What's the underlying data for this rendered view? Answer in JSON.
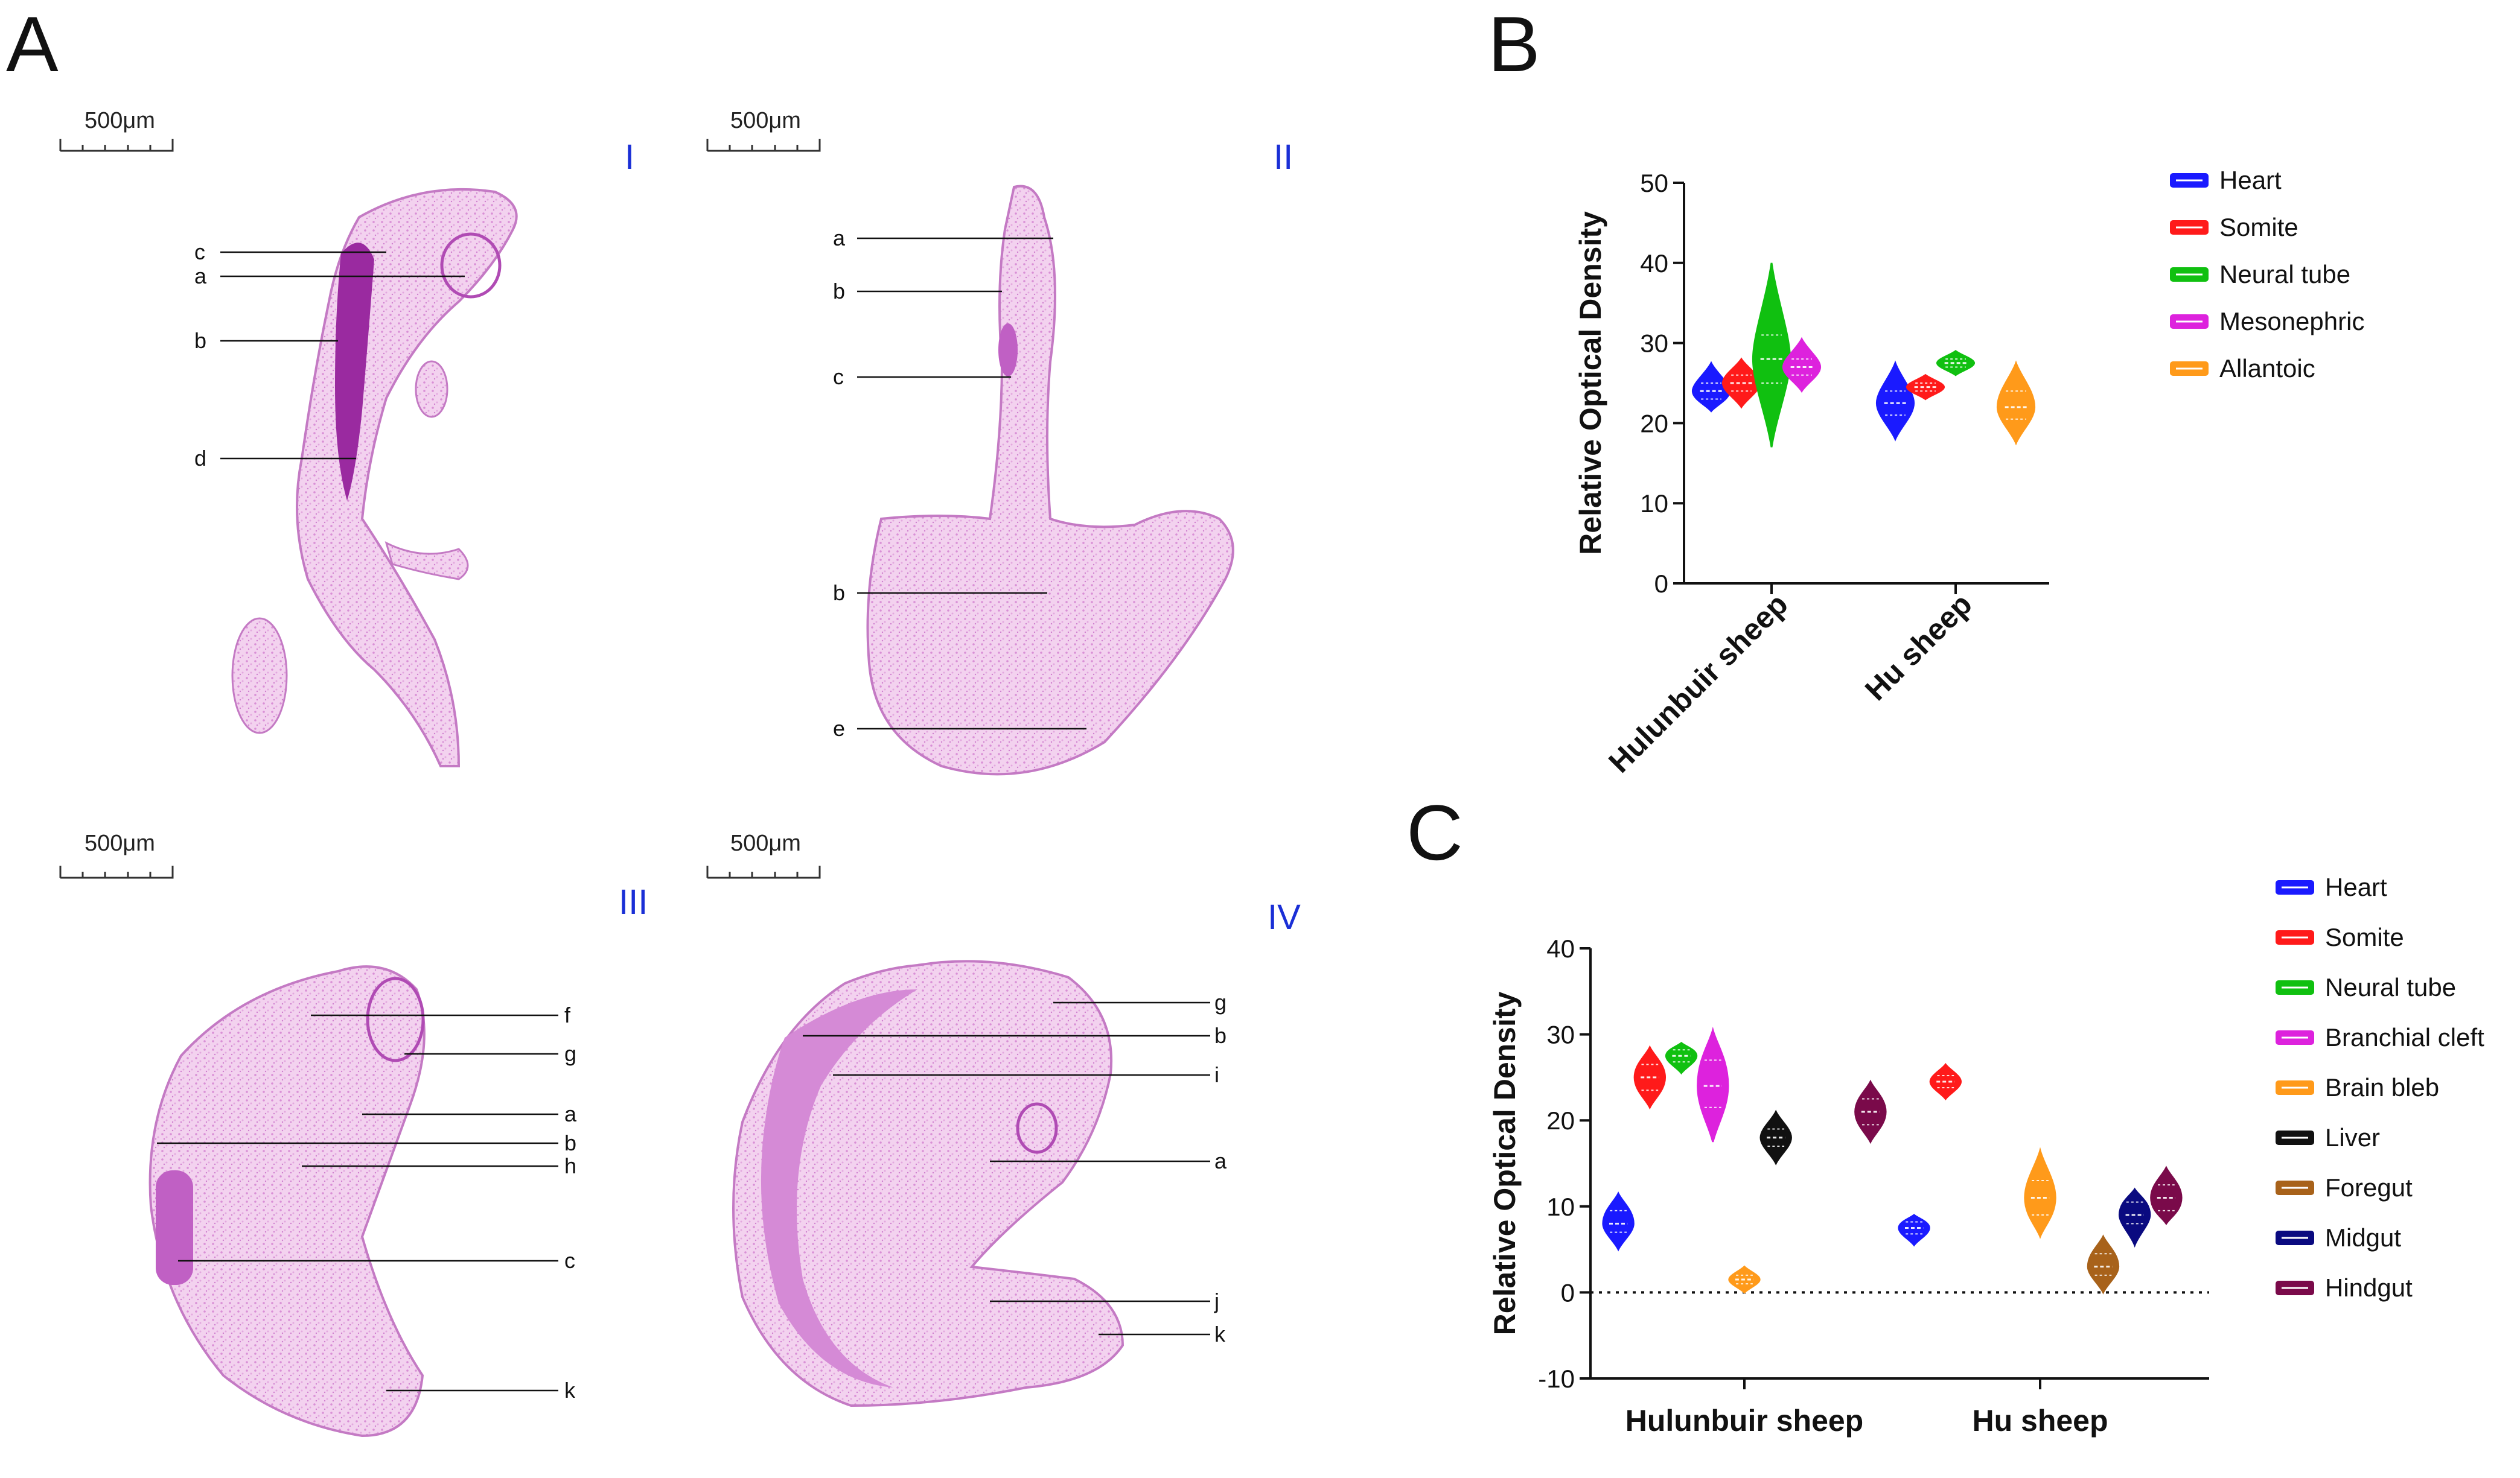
{
  "panels": {
    "A": {
      "letter": "A",
      "scale_text": "500μm",
      "sections": [
        {
          "numeral": "I",
          "labels": [
            "c",
            "a",
            "b",
            "d"
          ]
        },
        {
          "numeral": "II",
          "labels": [
            "a",
            "b",
            "c",
            "b",
            "e"
          ]
        },
        {
          "numeral": "III",
          "labels": [
            "f",
            "g",
            "a",
            "b",
            "h",
            "c",
            "k"
          ]
        },
        {
          "numeral": "IV",
          "labels": [
            "g",
            "b",
            "i",
            "a",
            "j",
            "k"
          ]
        }
      ]
    },
    "B": {
      "letter": "B"
    },
    "C": {
      "letter": "C"
    }
  },
  "colors": {
    "Heart": "#1a1aff",
    "Somite": "#ff1a1a",
    "Neural tube": "#10c010",
    "Mesonephric": "#dd22dd",
    "Branchial cleft": "#dd22dd",
    "Allantoic": "#ff9a1a",
    "Brain bleb": "#ff9a1a",
    "Liver": "#111111",
    "Foregut": "#a8621a",
    "Midgut": "#0a0a80",
    "Hindgut": "#7a0a4a",
    "numeral": "#1a2fd6",
    "tissue_light": "#eec0ea",
    "tissue_dark": "#b04bb4"
  },
  "chart_data": [
    {
      "panel": "B",
      "type": "violin",
      "title": "",
      "xlabel": "",
      "ylabel": "Relative Optical Density",
      "ylim": [
        0,
        50
      ],
      "yticks": [
        0,
        10,
        20,
        30,
        40,
        50
      ],
      "categories": [
        "Hulunbuir sheep",
        "Hu sheep"
      ],
      "legend": [
        "Heart",
        "Somite",
        "Neural tube",
        "Mesonephric",
        "Allantoic"
      ],
      "legend_position": "right",
      "series": [
        {
          "name": "Heart",
          "values": [
            {
              "min": 21.5,
              "q1": 23.0,
              "median": 24.0,
              "q3": 25.0,
              "max": 27.5
            },
            {
              "min": 18.0,
              "q1": 21.0,
              "median": 22.5,
              "q3": 24.0,
              "max": 27.5
            }
          ]
        },
        {
          "name": "Somite",
          "values": [
            {
              "min": 22.0,
              "q1": 24.0,
              "median": 25.0,
              "q3": 26.0,
              "max": 28.0
            },
            {
              "min": 23.0,
              "q1": 24.0,
              "median": 24.5,
              "q3": 25.0,
              "max": 26.0
            }
          ]
        },
        {
          "name": "Neural tube",
          "values": [
            {
              "min": 17.0,
              "q1": 25.0,
              "median": 28.0,
              "q3": 31.0,
              "max": 40.0
            },
            {
              "min": 26.0,
              "q1": 27.0,
              "median": 27.5,
              "q3": 28.0,
              "max": 29.0
            }
          ]
        },
        {
          "name": "Mesonephric",
          "values": [
            {
              "min": 24.0,
              "q1": 26.0,
              "median": 27.0,
              "q3": 28.0,
              "max": 30.5
            },
            null
          ]
        },
        {
          "name": "Allantoic",
          "values": [
            null,
            {
              "min": 17.5,
              "q1": 20.5,
              "median": 22.0,
              "q3": 24.0,
              "max": 27.5
            }
          ]
        }
      ]
    },
    {
      "panel": "C",
      "type": "violin",
      "title": "",
      "xlabel": "",
      "ylabel": "Relative Optical Density",
      "ylim": [
        -10,
        40
      ],
      "yticks": [
        -10,
        0,
        10,
        20,
        30,
        40
      ],
      "zero_line": "dotted",
      "categories": [
        "Hulunbuir sheep",
        "Hu sheep"
      ],
      "legend": [
        "Heart",
        "Somite",
        "Neural tube",
        "Branchial cleft",
        "Brain bleb",
        "Liver",
        "Foregut",
        "Midgut",
        "Hindgut"
      ],
      "legend_position": "right",
      "series": [
        {
          "name": "Heart",
          "values": [
            {
              "min": 5.0,
              "q1": 7.0,
              "median": 8.0,
              "q3": 9.5,
              "max": 11.5
            },
            {
              "min": 5.5,
              "q1": 6.8,
              "median": 7.5,
              "q3": 8.2,
              "max": 9.0
            }
          ]
        },
        {
          "name": "Somite",
          "values": [
            {
              "min": 21.5,
              "q1": 23.5,
              "median": 25.0,
              "q3": 26.5,
              "max": 28.5
            },
            {
              "min": 22.5,
              "q1": 23.8,
              "median": 24.5,
              "q3": 25.2,
              "max": 26.5
            }
          ]
        },
        {
          "name": "Neural tube",
          "values": [
            {
              "min": 25.5,
              "q1": 26.8,
              "median": 27.5,
              "q3": 28.2,
              "max": 29.0
            },
            null
          ]
        },
        {
          "name": "Branchial cleft",
          "values": [
            {
              "min": 17.5,
              "q1": 21.5,
              "median": 24.0,
              "q3": 27.0,
              "max": 30.5
            },
            null
          ]
        },
        {
          "name": "Brain bleb",
          "values": [
            {
              "min": 0.0,
              "q1": 1.0,
              "median": 1.5,
              "q3": 2.0,
              "max": 3.0
            },
            {
              "min": 6.5,
              "q1": 9.0,
              "median": 11.0,
              "q3": 13.0,
              "max": 16.5
            }
          ]
        },
        {
          "name": "Liver",
          "values": [
            {
              "min": 15.0,
              "q1": 17.0,
              "median": 18.0,
              "q3": 19.0,
              "max": 21.0
            },
            null
          ]
        },
        {
          "name": "Foregut",
          "values": [
            null,
            {
              "min": 0.0,
              "q1": 2.0,
              "median": 3.0,
              "q3": 4.5,
              "max": 6.5
            }
          ]
        },
        {
          "name": "Midgut",
          "values": [
            null,
            {
              "min": 5.5,
              "q1": 8.0,
              "median": 9.0,
              "q3": 10.5,
              "max": 12.0
            }
          ]
        },
        {
          "name": "Hindgut",
          "values": [
            {
              "min": 17.5,
              "q1": 19.5,
              "median": 21.0,
              "q3": 22.5,
              "max": 24.5
            },
            {
              "min": 8.0,
              "q1": 9.5,
              "median": 11.0,
              "q3": 12.5,
              "max": 14.5
            }
          ]
        }
      ]
    }
  ]
}
